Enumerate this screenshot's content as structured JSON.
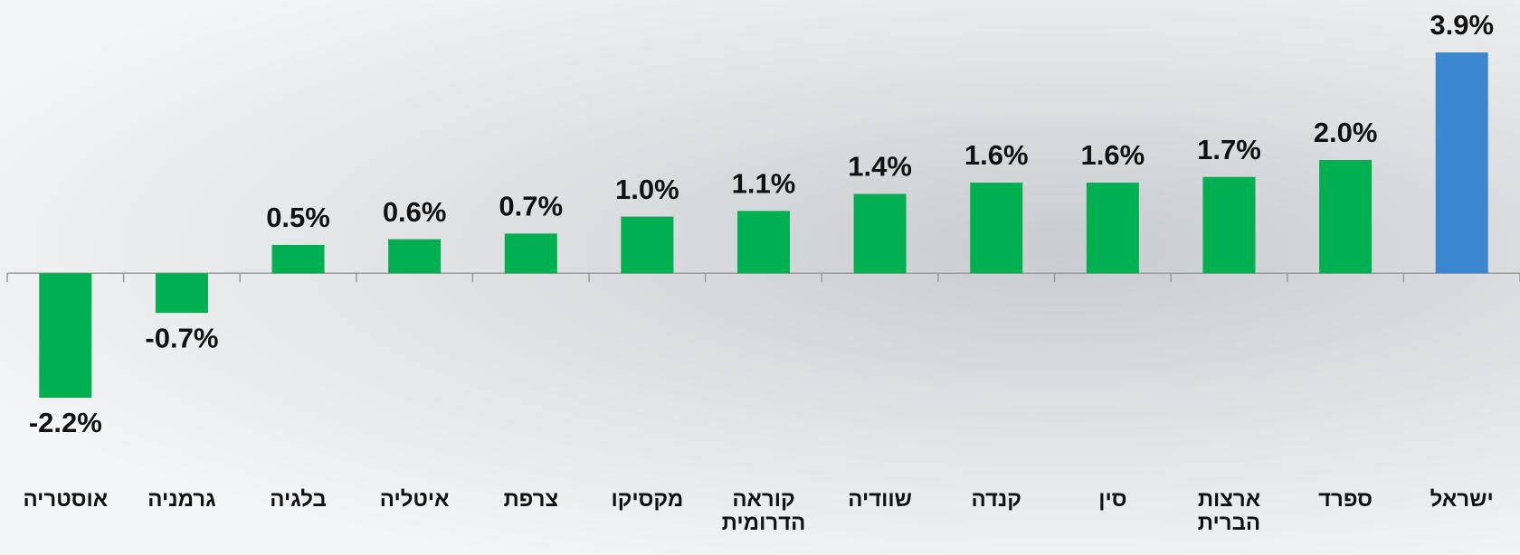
{
  "chart_data": {
    "type": "bar",
    "categories": [
      "אוסטריה",
      "גרמניה",
      "בלגיה",
      "איטליה",
      "צרפת",
      "מקסיקו",
      "קוראה הדרומית",
      "שוודיה",
      "קנדה",
      "סין",
      "ארצות הברית",
      "ספרד",
      "ישראל"
    ],
    "values": [
      -2.2,
      -0.7,
      0.5,
      0.6,
      0.7,
      1.0,
      1.1,
      1.4,
      1.6,
      1.6,
      1.7,
      2.0,
      3.9
    ],
    "value_labels": [
      "-2.2%",
      "-0.7%",
      "0.5%",
      "0.6%",
      "0.7%",
      "1.0%",
      "1.1%",
      "1.4%",
      "1.6%",
      "1.6%",
      "1.7%",
      "2.0%",
      "3.9%"
    ],
    "colors": [
      "#00b050",
      "#00b050",
      "#00b050",
      "#00b050",
      "#00b050",
      "#00b050",
      "#00b050",
      "#00b050",
      "#00b050",
      "#00b050",
      "#00b050",
      "#00b050",
      "#3a87d0"
    ]
  }
}
